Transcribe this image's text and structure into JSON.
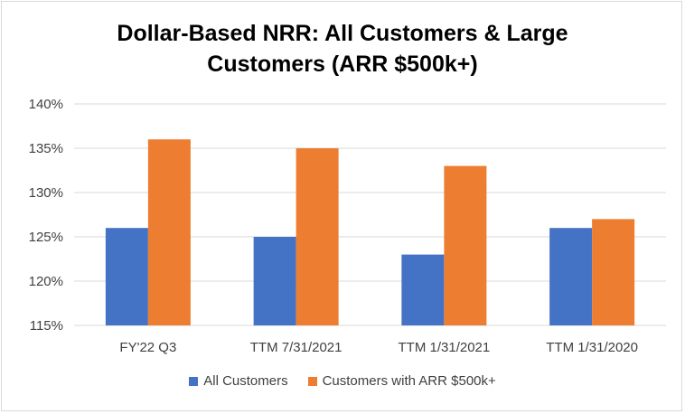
{
  "chart_data": {
    "type": "bar",
    "title_lines": [
      "Dollar-Based NRR: All Customers & Large",
      "Customers (ARR $500k+)"
    ],
    "categories": [
      "FY'22 Q3",
      "TTM 7/31/2021",
      "TTM 1/31/2021",
      "TTM 1/31/2020"
    ],
    "series": [
      {
        "name": "All Customers",
        "values": [
          126,
          125,
          123,
          126
        ],
        "color": "#4472c4"
      },
      {
        "name": "Customers with ARR $500k+",
        "values": [
          136,
          135,
          133,
          127
        ],
        "color": "#ed7d31"
      }
    ],
    "y_ticks": [
      115,
      120,
      125,
      130,
      135,
      140
    ],
    "y_tick_labels": [
      "115%",
      "120%",
      "125%",
      "130%",
      "135%",
      "140%"
    ],
    "ylim": [
      115,
      140
    ],
    "grid": true,
    "legend_position": "bottom",
    "gridline_color": "#d9d9d9"
  }
}
